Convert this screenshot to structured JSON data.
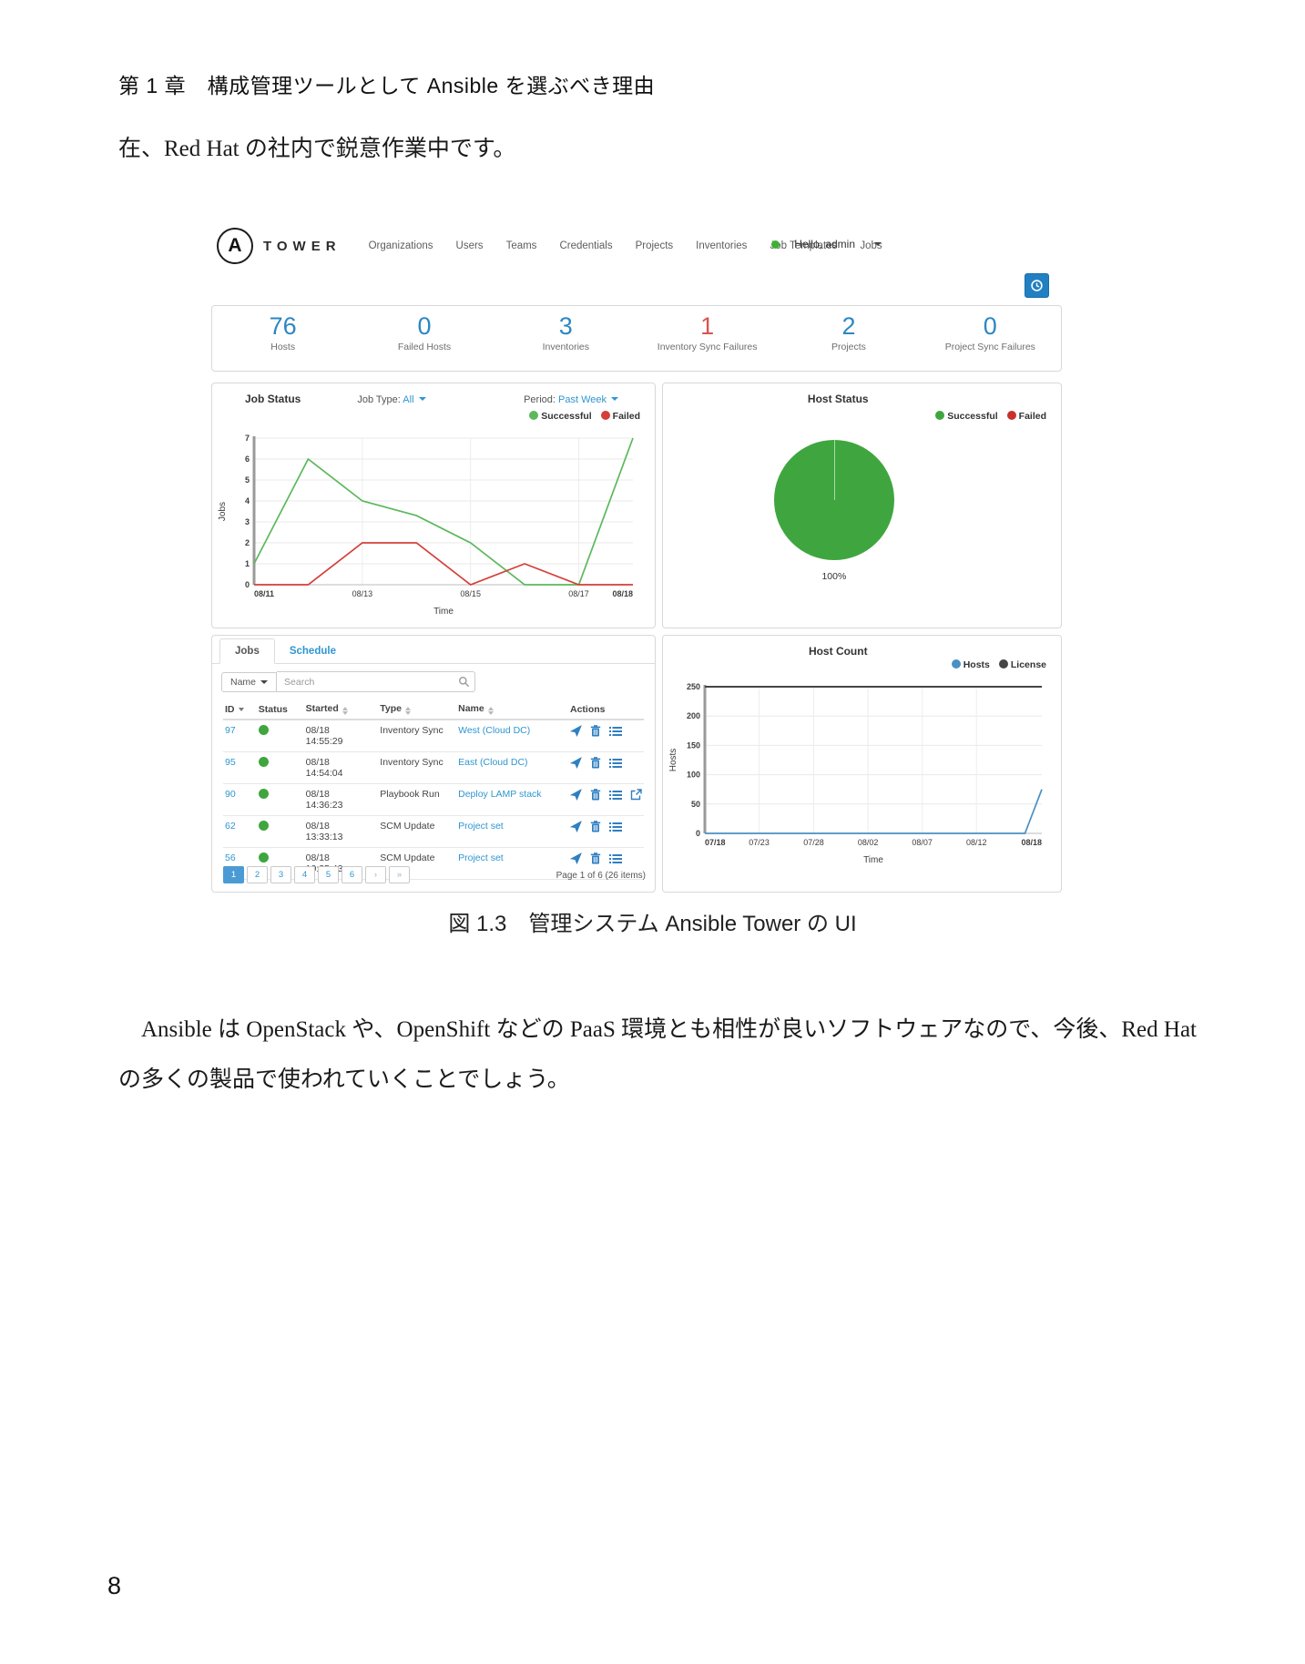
{
  "page": {
    "chapter_heading": "第 1 章　構成管理ツールとして Ansible を選ぶべき理由",
    "intro_line": "在、Red Hat の社内で鋭意作業中です。",
    "caption": "図 1.3　管理システム Ansible Tower の UI",
    "body_paragraph": "Ansible は OpenStack や、OpenShift などの PaaS 環境とも相性が良いソフトウェアなので、今後、Red Hat の多くの製品で使われていくことでしょう。",
    "page_number": "8"
  },
  "tower": {
    "logo_letter": "A",
    "brand": "TOWER",
    "nav": [
      "Organizations",
      "Users",
      "Teams",
      "Credentials",
      "Projects",
      "Inventories",
      "Job Templates",
      "Jobs"
    ],
    "user_menu": "Hello, admin",
    "status_dot_color": "#3eb134",
    "stats": [
      {
        "value": "76",
        "label": "Hosts",
        "color": "#2d87c3"
      },
      {
        "value": "0",
        "label": "Failed Hosts",
        "color": "#2d87c3"
      },
      {
        "value": "3",
        "label": "Inventories",
        "color": "#2d87c3"
      },
      {
        "value": "1",
        "label": "Inventory Sync Failures",
        "color": "#d9534f"
      },
      {
        "value": "2",
        "label": "Projects",
        "color": "#2d87c3"
      },
      {
        "value": "0",
        "label": "Project Sync Failures",
        "color": "#2d87c3"
      }
    ],
    "job_status_header": {
      "title": "Job Status",
      "job_type_label": "Job Type:",
      "job_type_value": "All",
      "period_label": "Period:",
      "period_value": "Past Week"
    },
    "host_status_header": {
      "title": "Host Status"
    },
    "host_count_header": {
      "title": "Host Count"
    },
    "jobs_panel": {
      "tab_jobs": "Jobs",
      "tab_schedule": "Schedule",
      "filter_button": "Name",
      "search_placeholder": "Search",
      "columns": {
        "id": "ID",
        "status": "Status",
        "started": "Started",
        "type": "Type",
        "name": "Name",
        "actions": "Actions"
      },
      "rows": [
        {
          "id": "97",
          "date": "08/18",
          "time": "14:55:29",
          "type": "Inventory Sync",
          "name": "West (Cloud DC)"
        },
        {
          "id": "95",
          "date": "08/18",
          "time": "14:54:04",
          "type": "Inventory Sync",
          "name": "East (Cloud DC)"
        },
        {
          "id": "90",
          "date": "08/18",
          "time": "14:36:23",
          "type": "Playbook Run",
          "name": "Deploy LAMP stack"
        },
        {
          "id": "62",
          "date": "08/18",
          "time": "13:33:13",
          "type": "SCM Update",
          "name": "Project set"
        },
        {
          "id": "56",
          "date": "08/18",
          "time": "10:35:43",
          "type": "SCM Update",
          "name": "Project set"
        }
      ],
      "row_status_color": "#3fa63f",
      "pagination": [
        "1",
        "2",
        "3",
        "4",
        "5",
        "6",
        "›",
        "»"
      ],
      "page_info": "Page 1 of 6 (26 items)"
    }
  },
  "chart_data": [
    {
      "id": "job_status",
      "type": "line",
      "title": "Job Status",
      "x_labels": [
        "08/11",
        "08/12",
        "08/13",
        "08/14",
        "08/15",
        "08/16",
        "08/17",
        "08/18"
      ],
      "x_tick_shown": [
        "08/11",
        "08/13",
        "08/15",
        "08/17",
        "08/18"
      ],
      "x_tick_pos": [
        0,
        0.2857,
        0.5714,
        0.8571,
        1
      ],
      "xlabel": "Time",
      "ylabel": "Jobs",
      "ylim": [
        0,
        7
      ],
      "yticks": [
        0,
        1,
        2,
        3,
        4,
        5,
        6,
        7
      ],
      "legend_position": "top-right",
      "grid": true,
      "series": [
        {
          "name": "Successful",
          "color": "#5cb85c",
          "values": [
            1,
            6,
            4,
            3.3,
            2,
            0,
            0,
            7
          ]
        },
        {
          "name": "Failed",
          "color": "#d43f3a",
          "values": [
            0,
            0,
            2,
            2,
            0,
            1,
            0,
            0
          ]
        }
      ]
    },
    {
      "id": "host_status",
      "type": "pie",
      "title": "Host Status",
      "legend_position": "top-right",
      "slices": [
        {
          "label": "Successful",
          "value": 100,
          "color": "#3fa63f"
        },
        {
          "label": "Failed",
          "value": 0,
          "color": "#c9302c"
        }
      ],
      "percent_label": "100%"
    },
    {
      "id": "host_count",
      "type": "line",
      "title": "Host Count",
      "x_tick_shown": [
        "07/18",
        "07/23",
        "07/28",
        "08/02",
        "08/07",
        "08/12",
        "08/18"
      ],
      "x_tick_pos": [
        0,
        0.161,
        0.323,
        0.484,
        0.645,
        0.806,
        1
      ],
      "xlabel": "Time",
      "ylabel": "Hosts",
      "ylim": [
        0,
        250
      ],
      "yticks": [
        0,
        50,
        100,
        150,
        200,
        250
      ],
      "legend_position": "top-right",
      "grid": true,
      "series": [
        {
          "name": "Hosts",
          "color": "#4a90c2",
          "points": [
            [
              0,
              0
            ],
            [
              0.95,
              0
            ],
            [
              1,
              75
            ]
          ]
        },
        {
          "name": "License",
          "color": "#454545",
          "points": [
            [
              0,
              250
            ],
            [
              1,
              250
            ]
          ]
        }
      ]
    }
  ]
}
